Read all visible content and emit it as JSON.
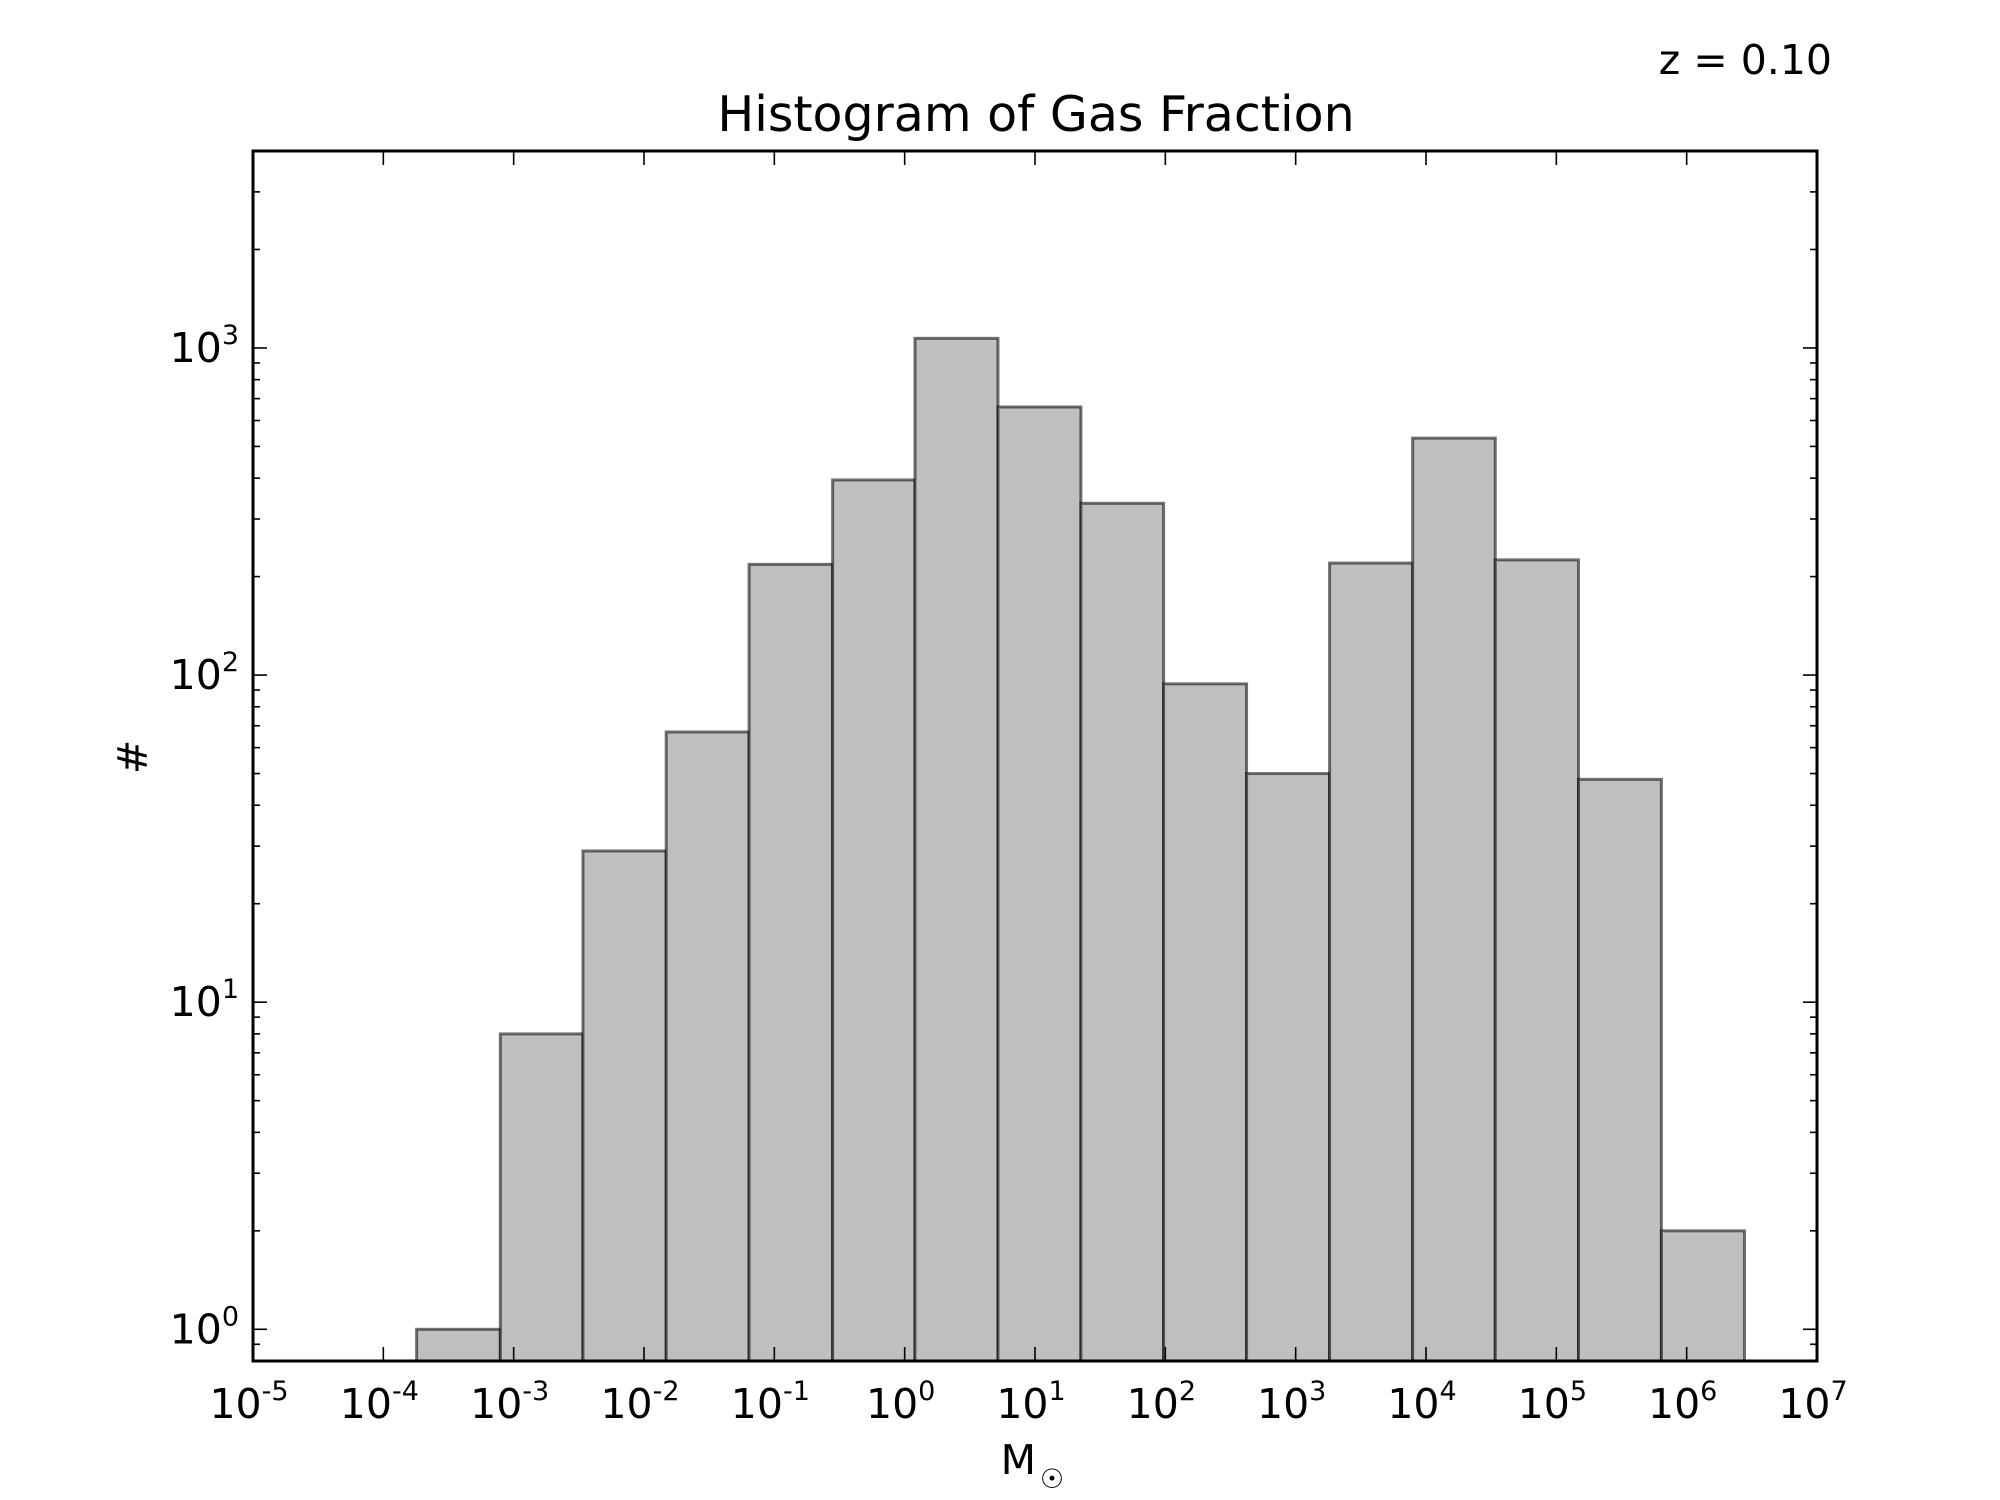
{
  "chart_data": {
    "type": "bar",
    "title": "Histogram of Gas Fraction",
    "annotation": "z = 0.10",
    "xlabel": "M",
    "xlabel_symbol": "☉",
    "ylabel": "#",
    "xscale": "log",
    "yscale": "log",
    "xlim": [
      1e-05,
      10000000.0
    ],
    "ylim": [
      0.8,
      4000
    ],
    "grid": false,
    "bar_fill": "#bfbfbf",
    "bar_edge": "#595959",
    "x_ticks": [
      {
        "base": "10",
        "exp": "-5",
        "value": 1e-05
      },
      {
        "base": "10",
        "exp": "-4",
        "value": 0.0001
      },
      {
        "base": "10",
        "exp": "-3",
        "value": 0.001
      },
      {
        "base": "10",
        "exp": "-2",
        "value": 0.01
      },
      {
        "base": "10",
        "exp": "-1",
        "value": 0.1
      },
      {
        "base": "10",
        "exp": "0",
        "value": 1
      },
      {
        "base": "10",
        "exp": "1",
        "value": 10
      },
      {
        "base": "10",
        "exp": "2",
        "value": 100
      },
      {
        "base": "10",
        "exp": "3",
        "value": 1000
      },
      {
        "base": "10",
        "exp": "4",
        "value": 10000
      },
      {
        "base": "10",
        "exp": "5",
        "value": 100000
      },
      {
        "base": "10",
        "exp": "6",
        "value": 1000000
      },
      {
        "base": "10",
        "exp": "7",
        "value": 10000000
      }
    ],
    "y_ticks": [
      {
        "base": "10",
        "exp": "0",
        "value": 1
      },
      {
        "base": "10",
        "exp": "1",
        "value": 10
      },
      {
        "base": "10",
        "exp": "2",
        "value": 100
      },
      {
        "base": "10",
        "exp": "3",
        "value": 1000
      }
    ],
    "bins": [
      {
        "x0": 0.00018,
        "x1": 0.00079,
        "count": 1
      },
      {
        "x0": 0.00079,
        "x1": 0.0034,
        "count": 8
      },
      {
        "x0": 0.0034,
        "x1": 0.0148,
        "count": 29
      },
      {
        "x0": 0.0148,
        "x1": 0.064,
        "count": 67
      },
      {
        "x0": 0.064,
        "x1": 0.28,
        "count": 218
      },
      {
        "x0": 0.28,
        "x1": 1.2,
        "count": 395
      },
      {
        "x0": 1.2,
        "x1": 5.2,
        "count": 1070
      },
      {
        "x0": 5.2,
        "x1": 22.5,
        "count": 660
      },
      {
        "x0": 22.5,
        "x1": 97,
        "count": 335
      },
      {
        "x0": 97,
        "x1": 420,
        "count": 94
      },
      {
        "x0": 420,
        "x1": 1820,
        "count": 50
      },
      {
        "x0": 1820,
        "x1": 7900,
        "count": 220
      },
      {
        "x0": 7900,
        "x1": 34000,
        "count": 530
      },
      {
        "x0": 34000,
        "x1": 148000,
        "count": 225
      },
      {
        "x0": 148000,
        "x1": 640000,
        "count": 48
      },
      {
        "x0": 640000,
        "x1": 2780000,
        "count": 2
      }
    ]
  }
}
